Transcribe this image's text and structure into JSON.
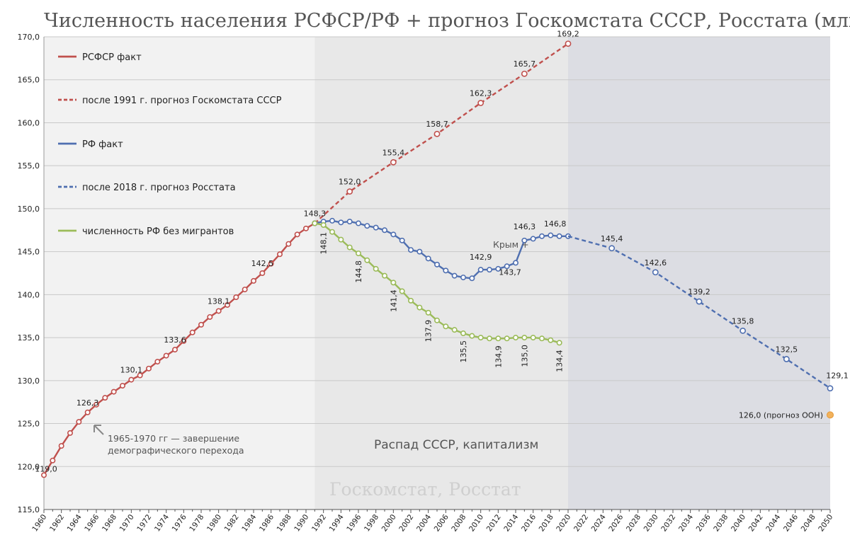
{
  "chart_data": {
    "type": "line",
    "title": "Численность населения РСФСР/РФ + прогноз Госкомстата СССР, Росстата (млн. чел)",
    "ylim": [
      115,
      170
    ],
    "yticks": [
      "115,0",
      "120,0",
      "125,0",
      "130,0",
      "135,0",
      "140,0",
      "145,0",
      "150,0",
      "155,0",
      "160,0",
      "165,0",
      "170,0"
    ],
    "xlim": [
      1960,
      2050
    ],
    "xticks": [
      "1960",
      "1962",
      "1964",
      "1966",
      "1968",
      "1970",
      "1972",
      "1974",
      "1976",
      "1978",
      "1980",
      "1982",
      "1984",
      "1986",
      "1988",
      "1990",
      "1992",
      "1994",
      "1996",
      "1998",
      "2000",
      "2002",
      "2004",
      "2006",
      "2008",
      "2010",
      "2012",
      "2014",
      "2016",
      "2018",
      "2020",
      "2022",
      "2024",
      "2026",
      "2028",
      "2030",
      "2032",
      "2034",
      "2036",
      "2038",
      "2040",
      "2042",
      "2044",
      "2046",
      "2048",
      "2050"
    ],
    "grid": true,
    "legend_position": "top-left",
    "series": [
      {
        "name": "РСФСР факт",
        "style": "solid",
        "color": "#c0504d",
        "x": [
          1960,
          1961,
          1962,
          1963,
          1964,
          1965,
          1966,
          1967,
          1968,
          1969,
          1970,
          1971,
          1972,
          1973,
          1974,
          1975,
          1976,
          1977,
          1978,
          1979,
          1980,
          1981,
          1982,
          1983,
          1984,
          1985,
          1986,
          1987,
          1988,
          1989,
          1990,
          1991
        ],
        "y": [
          119.0,
          120.7,
          122.4,
          123.9,
          125.2,
          126.3,
          127.2,
          128.0,
          128.7,
          129.4,
          130.1,
          130.6,
          131.4,
          132.2,
          132.9,
          133.6,
          134.6,
          135.6,
          136.5,
          137.4,
          138.1,
          138.8,
          139.7,
          140.6,
          141.6,
          142.5,
          143.6,
          144.7,
          145.9,
          147.0,
          147.7,
          148.3
        ],
        "labels": {
          "1960": "119,0",
          "1965": "126,3",
          "1970": "130,1",
          "1975": "133,6",
          "1980": "138,1",
          "1985": "142,5",
          "1991": "148,3"
        }
      },
      {
        "name": "после 1991 г. прогноз Госкомстата  СССР",
        "style": "dashed",
        "color": "#c0504d",
        "x": [
          1991,
          1995,
          2000,
          2005,
          2010,
          2015,
          2020
        ],
        "y": [
          148.3,
          152.0,
          155.4,
          158.7,
          162.3,
          165.7,
          169.2
        ],
        "labels": {
          "1995": "152,0",
          "2000": "155,4",
          "2005": "158,7",
          "2010": "162,3",
          "2015": "165,7",
          "2020": "169,2"
        }
      },
      {
        "name": "РФ факт",
        "style": "solid",
        "color": "#4f6fb0",
        "x": [
          1991,
          1992,
          1993,
          1994,
          1995,
          1996,
          1997,
          1998,
          1999,
          2000,
          2001,
          2002,
          2003,
          2004,
          2005,
          2006,
          2007,
          2008,
          2009,
          2010,
          2011,
          2012,
          2013,
          2014,
          2015,
          2016,
          2017,
          2018,
          2019,
          2020
        ],
        "y": [
          148.3,
          148.5,
          148.6,
          148.4,
          148.5,
          148.3,
          148.0,
          147.8,
          147.5,
          147.0,
          146.3,
          145.2,
          145.0,
          144.2,
          143.5,
          142.8,
          142.2,
          142.0,
          141.9,
          142.9,
          142.9,
          143.0,
          143.3,
          143.7,
          146.3,
          146.5,
          146.8,
          146.9,
          146.8,
          146.8
        ],
        "labels": {
          "2010": "142,9",
          "2014": "143,7",
          "2015": "146,3",
          "2019": "146,8"
        }
      },
      {
        "name": "после 2018  г. прогноз Росстата",
        "style": "dashed",
        "color": "#4f6fb0",
        "x": [
          2020,
          2025,
          2030,
          2035,
          2040,
          2045,
          2050
        ],
        "y": [
          146.8,
          145.4,
          142.6,
          139.2,
          135.8,
          132.5,
          129.1
        ],
        "labels": {
          "2025": "145,4",
          "2030": "142,6",
          "2035": "139,2",
          "2040": "135,8",
          "2045": "132,5",
          "2050": "129,1"
        }
      },
      {
        "name": "численность РФ без мигрантов",
        "style": "solid",
        "color": "#9bbb59",
        "x": [
          1991,
          1992,
          1993,
          1994,
          1995,
          1996,
          1997,
          1998,
          1999,
          2000,
          2001,
          2002,
          2003,
          2004,
          2005,
          2006,
          2007,
          2008,
          2009,
          2010,
          2011,
          2012,
          2013,
          2014,
          2015,
          2016,
          2017,
          2018,
          2019
        ],
        "y": [
          148.3,
          148.1,
          147.3,
          146.4,
          145.5,
          144.8,
          144.0,
          143.0,
          142.2,
          141.4,
          140.4,
          139.3,
          138.5,
          137.9,
          137.0,
          136.3,
          135.9,
          135.5,
          135.2,
          135.0,
          134.9,
          134.9,
          134.9,
          135.0,
          135.0,
          135.0,
          134.9,
          134.7,
          134.4
        ],
        "labels": {
          "1992": "148,1",
          "1996": "144,8",
          "2000": "141,4",
          "2004": "137,9",
          "2008": "135,5",
          "2012": "134,9",
          "2015": "135,0",
          "2019": "134,4"
        }
      }
    ],
    "un_forecast": {
      "x": 2050,
      "y": 126.0,
      "label": "126,0 (прогноз ООН)",
      "color": "#f2b25c"
    },
    "annotations": {
      "crimea": "Крым +",
      "transition_line1": "1965-1970 гг — завершение",
      "transition_line2": "демографического перехода",
      "region": "Распад СССР, капитализм",
      "source": "Госкомстат, Росстат"
    }
  }
}
